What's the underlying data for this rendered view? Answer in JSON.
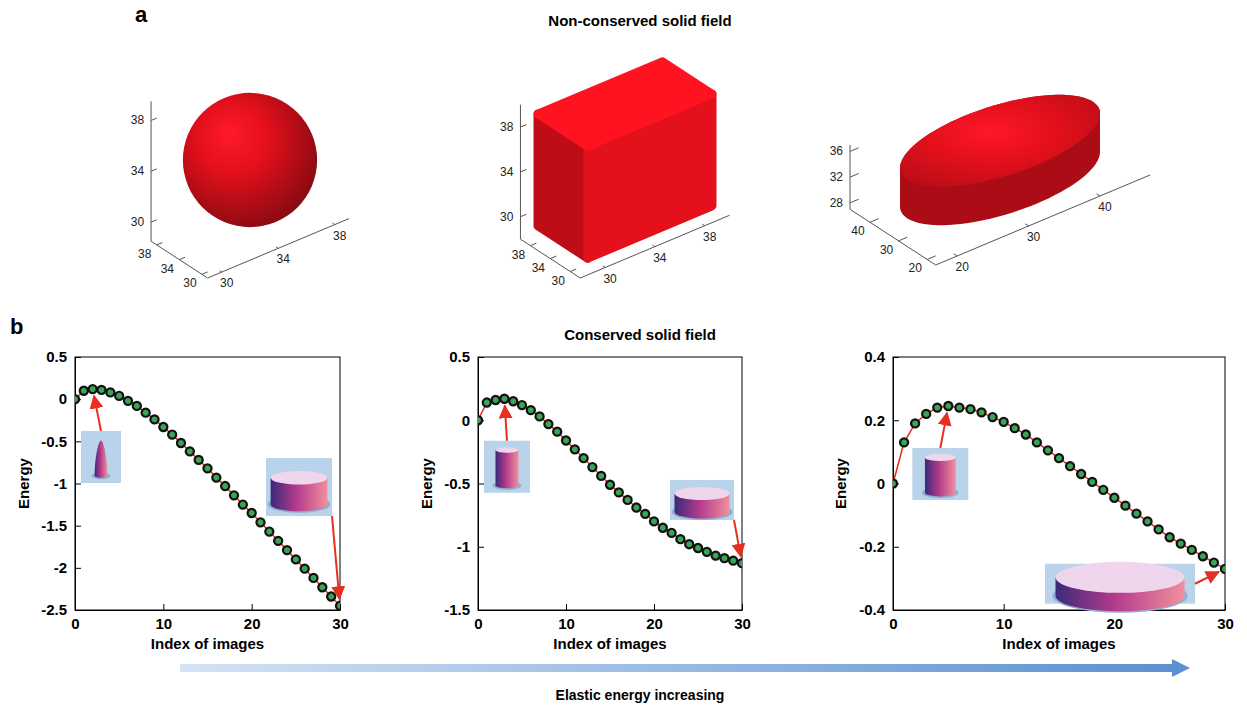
{
  "figure": {
    "labels": [
      "a",
      "b"
    ],
    "titles": [
      "Non-conserved solid field",
      "Conserved solid field"
    ],
    "arrow_label": "Elastic energy increasing"
  },
  "chart_data": [
    {
      "type": "sphere",
      "color": "#e4101c",
      "center": [
        34,
        34,
        34
      ],
      "radii": [
        5,
        5,
        5
      ],
      "xlim": [
        29,
        39
      ],
      "ylim": [
        29,
        39
      ],
      "zlim": [
        28.5,
        39.5
      ],
      "xticks": [
        30,
        34,
        38
      ],
      "yticks": [
        30,
        34,
        38
      ],
      "zticks": [
        30,
        34,
        38
      ]
    },
    {
      "type": "cube",
      "color": "#e4101c",
      "center": [
        34,
        34,
        34
      ],
      "radii": [
        5,
        5,
        5
      ],
      "xlim": [
        28,
        40
      ],
      "ylim": [
        28,
        40
      ],
      "zlim": [
        28,
        40
      ],
      "xticks": [
        30,
        34,
        38
      ],
      "yticks": [
        30,
        34,
        38
      ],
      "zticks": [
        30,
        34,
        38
      ]
    },
    {
      "type": "disk",
      "color": "#e4101c",
      "center": [
        32,
        32,
        32
      ],
      "radii": [
        13,
        13,
        3
      ],
      "xlim": [
        17,
        47
      ],
      "ylim": [
        17,
        47
      ],
      "zlim": [
        27,
        37
      ],
      "xticks": [
        20,
        30,
        40
      ],
      "yticks": [
        20,
        30,
        40
      ],
      "zticks": [
        28,
        32,
        36
      ]
    },
    {
      "type": "line",
      "xlabel": "Index of images",
      "ylabel": "Energy",
      "grid": false,
      "x": [
        0,
        1,
        2,
        3,
        4,
        5,
        6,
        7,
        8,
        9,
        10,
        11,
        12,
        13,
        14,
        15,
        16,
        17,
        18,
        19,
        20,
        21,
        22,
        23,
        24,
        25,
        26,
        27,
        28,
        29,
        30
      ],
      "series": [
        {
          "color": "#e8291c",
          "marker": "circle",
          "values": [
            0,
            0.1,
            0.12,
            0.11,
            0.08,
            0.04,
            -0.02,
            -0.08,
            -0.16,
            -0.24,
            -0.33,
            -0.42,
            -0.52,
            -0.62,
            -0.72,
            -0.82,
            -0.93,
            -1.03,
            -1.14,
            -1.25,
            -1.35,
            -1.46,
            -1.57,
            -1.68,
            -1.79,
            -1.9,
            -2.01,
            -2.12,
            -2.23,
            -2.34,
            -2.45
          ]
        }
      ],
      "xlim": [
        0,
        30
      ],
      "ylim": [
        -2.5,
        0.5
      ],
      "xticks": [
        0,
        10,
        20,
        30
      ],
      "yticks": [
        -2.5,
        -2,
        -1.5,
        -1,
        -0.5,
        0,
        0.5
      ]
    },
    {
      "type": "line",
      "xlabel": "Index of images",
      "ylabel": "Energy",
      "grid": false,
      "x": [
        0,
        1,
        2,
        3,
        4,
        5,
        6,
        7,
        8,
        9,
        10,
        11,
        12,
        13,
        14,
        15,
        16,
        17,
        18,
        19,
        20,
        21,
        22,
        23,
        24,
        25,
        26,
        27,
        28,
        29,
        30
      ],
      "series": [
        {
          "color": "#e8291c",
          "marker": "circle",
          "values": [
            0,
            0.14,
            0.16,
            0.17,
            0.15,
            0.12,
            0.08,
            0.03,
            -0.03,
            -0.09,
            -0.16,
            -0.23,
            -0.3,
            -0.37,
            -0.44,
            -0.51,
            -0.57,
            -0.63,
            -0.69,
            -0.74,
            -0.8,
            -0.85,
            -0.89,
            -0.94,
            -0.98,
            -1.01,
            -1.04,
            -1.07,
            -1.09,
            -1.11,
            -1.13
          ]
        }
      ],
      "xlim": [
        0,
        30
      ],
      "ylim": [
        -1.5,
        0.5
      ],
      "xticks": [
        0,
        10,
        20,
        30
      ],
      "yticks": [
        -1.5,
        -1,
        -0.5,
        0,
        0.5
      ]
    },
    {
      "type": "line",
      "xlabel": "Index of images",
      "ylabel": "Energy",
      "grid": false,
      "x": [
        0,
        1,
        2,
        3,
        4,
        5,
        6,
        7,
        8,
        9,
        10,
        11,
        12,
        13,
        14,
        15,
        16,
        17,
        18,
        19,
        20,
        21,
        22,
        23,
        24,
        25,
        26,
        27,
        28,
        29,
        30
      ],
      "series": [
        {
          "color": "#e8291c",
          "marker": "circle",
          "values": [
            0,
            0.13,
            0.19,
            0.22,
            0.24,
            0.245,
            0.24,
            0.235,
            0.225,
            0.21,
            0.195,
            0.175,
            0.155,
            0.13,
            0.105,
            0.08,
            0.055,
            0.03,
            0.005,
            -0.02,
            -0.045,
            -0.07,
            -0.095,
            -0.12,
            -0.145,
            -0.17,
            -0.19,
            -0.21,
            -0.23,
            -0.25,
            -0.27
          ]
        }
      ],
      "xlim": [
        0,
        30
      ],
      "ylim": [
        -0.4,
        0.4
      ],
      "xticks": [
        0,
        10,
        20,
        30
      ],
      "yticks": [
        -0.4,
        -0.2,
        0,
        0.2,
        0.4
      ]
    }
  ]
}
